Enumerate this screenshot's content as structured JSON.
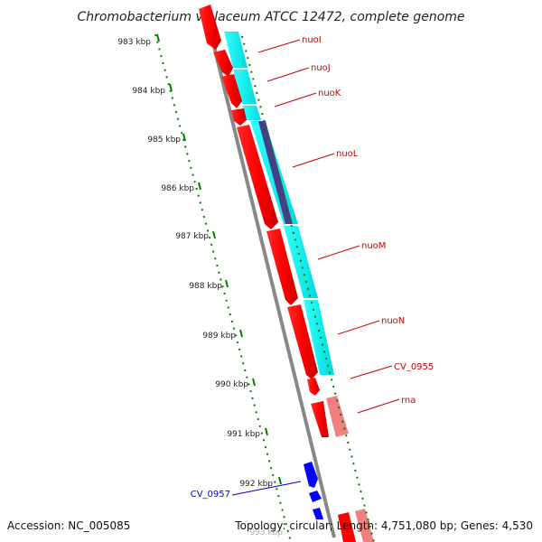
{
  "title": "Chromobacterium violaceum ATCC 12472, complete genome",
  "footer": {
    "accession": "Accession: NC_005085",
    "topology": "Topology: circular; Length: 4,751,080 bp; Genes: 4,530"
  },
  "colors": {
    "backbone": "#888888",
    "reverse_gene": "#ff0000",
    "rna_gene": "#f08080",
    "forward_gene": "#00ffff",
    "overlap_gene": "#483d8b",
    "blue_gene": "#0000ff",
    "ruler": "#008000",
    "gene_label": "#cc0000",
    "blue_label": "#0000cc"
  },
  "ruler_labels": [
    "983 kbp",
    "984 kbp",
    "985 kbp",
    "986 kbp",
    "987 kbp",
    "988 kbp",
    "989 kbp",
    "990 kbp",
    "991 kbp",
    "992 kbp",
    "993 kbp"
  ],
  "gene_labels": [
    "nuoI",
    "nuoJ",
    "nuoK",
    "nuoL",
    "nuoM",
    "nuoN",
    "CV_0955",
    "rna",
    "CV_0957"
  ]
}
